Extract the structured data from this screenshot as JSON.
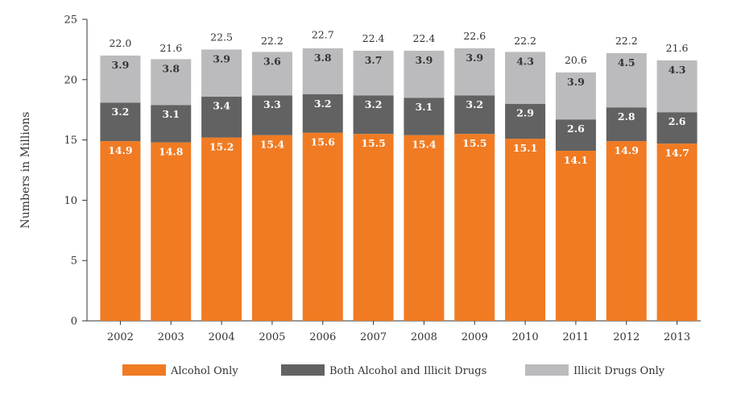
{
  "chart_data": {
    "type": "bar",
    "stacked": true,
    "categories": [
      "2002",
      "2003",
      "2004",
      "2005",
      "2006",
      "2007",
      "2008",
      "2009",
      "2010",
      "2011",
      "2012",
      "2013"
    ],
    "series": [
      {
        "name": "Alcohol Only",
        "color": "#f07b23",
        "label_color": "#ffffff",
        "values": [
          14.9,
          14.8,
          15.2,
          15.4,
          15.6,
          15.5,
          15.4,
          15.5,
          15.1,
          14.1,
          14.9,
          14.7
        ]
      },
      {
        "name": "Both Alcohol and Illicit Drugs",
        "color": "#626262",
        "label_color": "#ffffff",
        "values": [
          3.2,
          3.1,
          3.4,
          3.3,
          3.2,
          3.2,
          3.1,
          3.2,
          2.9,
          2.6,
          2.8,
          2.6
        ]
      },
      {
        "name": "Illicit Drugs Only",
        "color": "#bbbbbd",
        "label_color": "#333333",
        "values": [
          3.9,
          3.8,
          3.9,
          3.6,
          3.8,
          3.7,
          3.9,
          3.9,
          4.3,
          3.9,
          4.5,
          4.3
        ]
      }
    ],
    "totals": [
      22.0,
      21.6,
      22.5,
      22.2,
      22.7,
      22.4,
      22.4,
      22.6,
      22.2,
      20.6,
      22.2,
      21.6
    ],
    "value_labels": [
      [
        "14.9",
        "14.8",
        "15.2",
        "15.4",
        "15.6",
        "15.5",
        "15.4",
        "15.5",
        "15.1",
        "14.1",
        "14.9",
        "14.7"
      ],
      [
        "3.2",
        "3.1",
        "3.4",
        "3.3",
        "3.2",
        "3.2",
        "3.1",
        "3.2",
        "2.9",
        "2.6",
        "2.8",
        "2.6"
      ],
      [
        "3.9",
        "3.8",
        "3.9",
        "3.6",
        "3.8",
        "3.7",
        "3.9",
        "3.9",
        "4.3",
        "3.9",
        "4.5",
        "4.3"
      ]
    ],
    "total_labels": [
      "22.0",
      "21.6",
      "22.5",
      "22.2",
      "22.7",
      "22.4",
      "22.4",
      "22.6",
      "22.2",
      "20.6",
      "22.2",
      "21.6"
    ],
    "ylabel": "Numbers in Millions",
    "xlabel": "",
    "ylim": [
      0,
      25
    ],
    "yticks": [
      "0",
      "5",
      "10",
      "15",
      "20",
      "25"
    ],
    "legend_position": "bottom",
    "grid": false
  }
}
